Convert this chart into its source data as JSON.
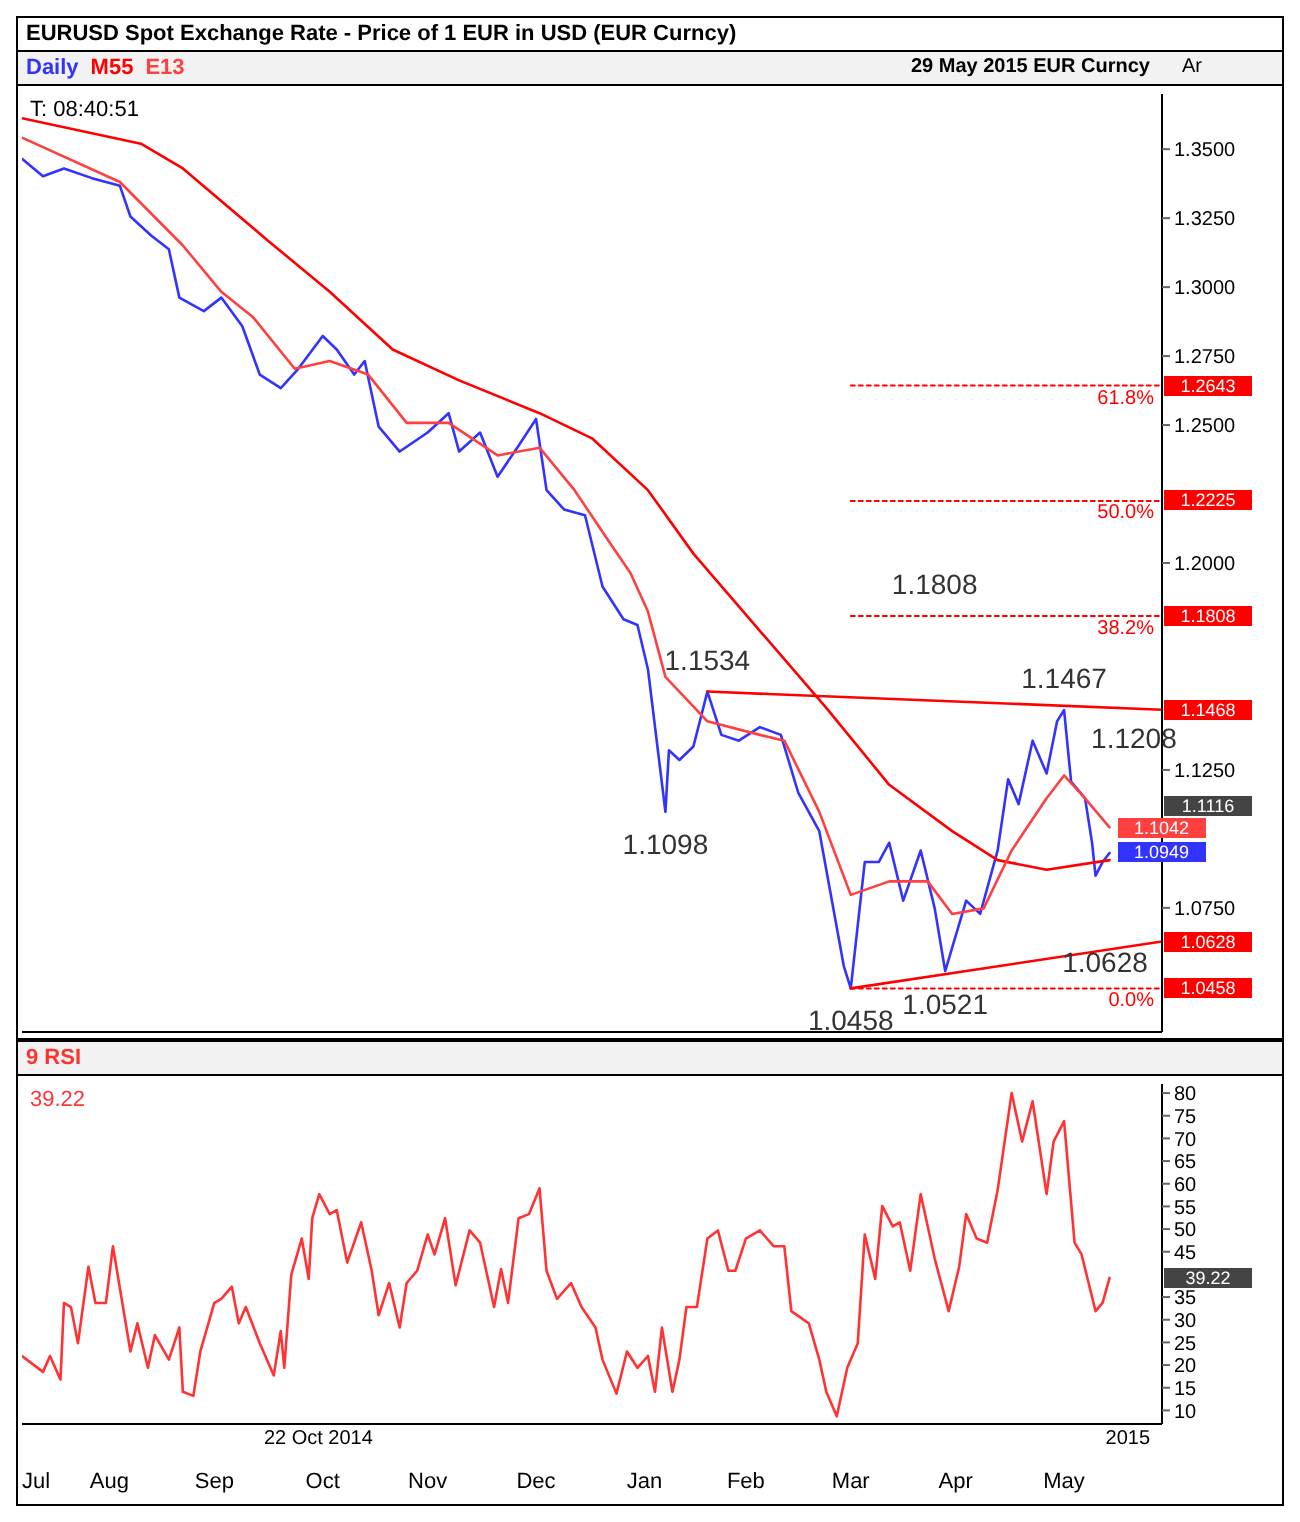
{
  "chart_data": [
    {
      "type": "line",
      "title": "EURUSD Spot Exchange Rate - Price of 1 EUR in USD (EUR Curncy)",
      "legend": "top left",
      "tick_labels": "y",
      "xlim": [
        "2014-07-22",
        "2015-06-13"
      ],
      "ylim": [
        1.03,
        1.37
      ],
      "yticks": [
        {
          "value": 1.075,
          "label": "1.0750"
        },
        {
          "value": 1.125,
          "label": "1.1250"
        },
        {
          "value": 1.2,
          "label": "1.2000"
        },
        {
          "value": 1.25,
          "label": "1.2500"
        },
        {
          "value": 1.275,
          "label": "1.2750"
        },
        {
          "value": 1.3,
          "label": "1.3000"
        },
        {
          "value": 1.325,
          "label": "1.3250"
        },
        {
          "value": 1.35,
          "label": "1.3500"
        }
      ],
      "series": [
        {
          "name": "Daily",
          "color": "#3333ff",
          "x": [
            "2014-07-22",
            "2014-07-28",
            "2014-08-03",
            "2014-08-11",
            "2014-08-19",
            "2014-08-22",
            "2014-08-28",
            "2014-09-02",
            "2014-09-05",
            "2014-09-12",
            "2014-09-17",
            "2014-09-23",
            "2014-09-28",
            "2014-10-04",
            "2014-10-09",
            "2014-10-16",
            "2014-10-20",
            "2014-10-25",
            "2014-10-28",
            "2014-11-01",
            "2014-11-07",
            "2014-11-15",
            "2014-11-21",
            "2014-11-24",
            "2014-11-30",
            "2014-12-05",
            "2014-12-11",
            "2014-12-16",
            "2014-12-19",
            "2014-12-24",
            "2014-12-30",
            "2015-01-04",
            "2015-01-10",
            "2015-01-14",
            "2015-01-17",
            "2015-01-22",
            "2015-01-23",
            "2015-01-26",
            "2015-01-30",
            "2015-02-03",
            "2015-02-07",
            "2015-02-12",
            "2015-02-18",
            "2015-02-24",
            "2015-03-01",
            "2015-03-07",
            "2015-03-10",
            "2015-03-14",
            "2015-03-16",
            "2015-03-20",
            "2015-03-24",
            "2015-03-27",
            "2015-03-31",
            "2015-04-05",
            "2015-04-09",
            "2015-04-12",
            "2015-04-18",
            "2015-04-22",
            "2015-04-27",
            "2015-04-30",
            "2015-05-03",
            "2015-05-07",
            "2015-05-11",
            "2015-05-14",
            "2015-05-16",
            "2015-05-18",
            "2015-05-22",
            "2015-05-24",
            "2015-05-25",
            "2015-05-27",
            "2015-05-29"
          ],
          "values": [
            1.3465,
            1.3402,
            1.343,
            1.3395,
            1.3367,
            1.3256,
            1.3186,
            1.3137,
            1.2962,
            1.2913,
            1.2962,
            1.2858,
            1.2683,
            1.2634,
            1.2704,
            1.2823,
            1.2774,
            1.2683,
            1.2732,
            1.2494,
            1.2404,
            1.2473,
            1.2543,
            1.2404,
            1.2473,
            1.2313,
            1.2425,
            1.2522,
            1.2264,
            1.2194,
            1.2173,
            1.1915,
            1.1796,
            1.1775,
            1.1615,
            1.1098,
            1.1321,
            1.1286,
            1.1335,
            1.1534,
            1.1377,
            1.1356,
            1.1405,
            1.1377,
            1.1167,
            1.1028,
            1.0818,
            1.0539,
            1.0458,
            1.0916,
            1.0916,
            1.0986,
            1.0776,
            1.0958,
            1.0748,
            1.0521,
            1.0776,
            1.0728,
            1.0958,
            1.1216,
            1.1126,
            1.1356,
            1.1237,
            1.1426,
            1.1467,
            1.1208,
            1.1147,
            1.0986,
            1.0867,
            1.0916,
            1.0949
          ],
          "value_labels": [
            null,
            null,
            null,
            null,
            null,
            null,
            null,
            null,
            null,
            null,
            null,
            null,
            null,
            null,
            null,
            null,
            null,
            null,
            null,
            null,
            null,
            null,
            null,
            null,
            null,
            null,
            null,
            null,
            null,
            null,
            null,
            null,
            null,
            null,
            null,
            "1.1098",
            null,
            null,
            null,
            "1.1534",
            null,
            null,
            null,
            null,
            null,
            null,
            null,
            null,
            "1.0458",
            null,
            null,
            null,
            null,
            null,
            null,
            "1.0521",
            null,
            null,
            null,
            null,
            null,
            null,
            null,
            null,
            "1.1467",
            "1.1208",
            null,
            null,
            null,
            null,
            "1.0949"
          ]
        },
        {
          "name": "M55",
          "color": "#ff0000",
          "x": [
            "2014-07-22",
            "2014-08-25",
            "2014-09-06",
            "2014-09-30",
            "2014-10-18",
            "2014-11-05",
            "2014-11-24",
            "2014-12-17",
            "2015-01-01",
            "2015-01-17",
            "2015-01-30",
            "2015-02-18",
            "2015-03-09",
            "2015-03-27",
            "2015-04-14",
            "2015-04-27",
            "2015-05-11",
            "2015-05-29"
          ],
          "values": [
            1.3612,
            1.352,
            1.343,
            1.3172,
            1.2983,
            1.2774,
            1.2662,
            1.2543,
            1.2452,
            1.2264,
            1.2034,
            1.1754,
            1.1475,
            1.1196,
            1.1028,
            1.0923,
            1.0888,
            1.0923
          ]
        },
        {
          "name": "E13",
          "color": "#ff4040",
          "x": [
            "2014-07-22",
            "2014-08-19",
            "2014-09-06",
            "2014-09-17",
            "2014-09-26",
            "2014-10-08",
            "2014-10-18",
            "2014-10-29",
            "2014-11-09",
            "2014-11-21",
            "2014-12-05",
            "2014-12-17",
            "2014-12-27",
            "2015-01-06",
            "2015-01-12",
            "2015-01-17",
            "2015-01-22",
            "2015-02-03",
            "2015-02-18",
            "2015-02-25",
            "2015-03-07",
            "2015-03-16",
            "2015-03-27",
            "2015-04-07",
            "2015-04-14",
            "2015-04-23",
            "2015-05-01",
            "2015-05-11",
            "2015-05-16",
            "2015-05-22",
            "2015-05-29"
          ],
          "values": [
            1.3542,
            1.3381,
            1.3151,
            1.2983,
            1.2892,
            1.2704,
            1.2732,
            1.2683,
            1.2508,
            1.2508,
            1.239,
            1.2418,
            1.2264,
            1.2075,
            1.1964,
            1.1824,
            1.1587,
            1.1426,
            1.1377,
            1.1356,
            1.1098,
            1.0797,
            1.0846,
            1.0846,
            1.0728,
            1.0748,
            1.0958,
            1.1147,
            1.123,
            1.1147,
            1.1042
          ],
          "value_labels": [
            null,
            null,
            null,
            null,
            null,
            null,
            null,
            null,
            null,
            null,
            null,
            null,
            null,
            null,
            null,
            null,
            null,
            null,
            null,
            null,
            null,
            null,
            null,
            null,
            null,
            null,
            null,
            null,
            null,
            null,
            "1.1042"
          ]
        },
        {
          "color": "#ff0000",
          "x": [
            "2015-02-03",
            "2015-06-13"
          ],
          "values": [
            1.1534,
            1.1468
          ],
          "value_labels": [
            null,
            "1.1468"
          ]
        },
        {
          "color": "#ff0000",
          "x": [
            "2015-03-16",
            "2015-06-13"
          ],
          "values": [
            1.0458,
            1.0628
          ],
          "value_labels": [
            null,
            "1.0628"
          ]
        },
        {
          "color": "#ff0000",
          "line_style": "dotted",
          "x": [
            "2015-03-16",
            "2015-06-13"
          ],
          "values": [
            1.2643,
            1.2643
          ],
          "value_labels": [
            null,
            "1.2643"
          ]
        },
        {
          "color": "#ff0000",
          "line_style": "dotted",
          "x": [
            "2015-03-16",
            "2015-06-13"
          ],
          "values": [
            1.2225,
            1.2225
          ],
          "value_labels": [
            null,
            "1.2225"
          ]
        },
        {
          "color": "#ff0000",
          "line_style": "dotted",
          "x": [
            "2015-03-16",
            "2015-04-09",
            "2015-06-13"
          ],
          "values": [
            1.1808,
            1.1808,
            1.1808
          ],
          "value_labels": [
            null,
            "1.1808",
            "1.1808"
          ]
        },
        {
          "color": "#ff0000",
          "line_style": "dotted",
          "x": [
            "2015-03-16",
            "2015-06-13"
          ],
          "values": [
            1.0458,
            1.0458
          ],
          "value_labels": [
            null,
            "1.0458"
          ]
        }
      ],
      "annotations": [
        "29 May 2015  EUR Curncy",
        "Ar",
        "T: 08:40:51",
        "1.1116",
        "1.0628",
        {
          "text": "61.8%",
          "x": "2015-06-13",
          "y": 1.2643
        },
        {
          "text": "50.0%",
          "x": "2015-06-13",
          "y": 1.2225
        },
        {
          "text": "38.2%",
          "x": "2015-06-13",
          "y": 1.1808
        },
        {
          "text": "0.0%",
          "x": "2015-06-13",
          "y": 1.0458
        }
      ]
    },
    {
      "type": "line",
      "legend": "top left",
      "xlim": [
        "2014-07-22",
        "2015-06-13"
      ],
      "ylim": [
        7,
        82
      ],
      "xticks": [
        {
          "value": "2014-07-26",
          "label": "Jul"
        },
        {
          "value": "2014-08-16",
          "label": "Aug"
        },
        {
          "value": "2014-09-15",
          "label": "Sep"
        },
        {
          "value": "2014-10-16",
          "label": "Oct"
        },
        {
          "value": "2014-11-15",
          "label": "Nov"
        },
        {
          "value": "2014-12-16",
          "label": "Dec"
        },
        {
          "value": "2015-01-16",
          "label": "Jan"
        },
        {
          "value": "2015-02-14",
          "label": "Feb"
        },
        {
          "value": "2015-03-16",
          "label": "Mar"
        },
        {
          "value": "2015-04-15",
          "label": "Apr"
        },
        {
          "value": "2015-05-16",
          "label": "May"
        }
      ],
      "yticks": [
        10,
        15,
        20,
        25,
        30,
        35,
        45,
        50,
        55,
        60,
        65,
        70,
        75,
        80
      ],
      "series": [
        {
          "name": "9 RSI",
          "color": "#ff3333",
          "x": [
            "2014-07-22",
            "2014-07-28",
            "2014-07-30",
            "2014-08-02",
            "2014-08-03",
            "2014-08-05",
            "2014-08-07",
            "2014-08-10",
            "2014-08-12",
            "2014-08-15",
            "2014-08-17",
            "2014-08-22",
            "2014-08-24",
            "2014-08-27",
            "2014-08-29",
            "2014-09-02",
            "2014-09-05",
            "2014-09-06",
            "2014-09-09",
            "2014-09-11",
            "2014-09-15",
            "2014-09-17",
            "2014-09-20",
            "2014-09-22",
            "2014-09-24",
            "2014-09-28",
            "2014-10-02",
            "2014-10-04",
            "2014-10-05",
            "2014-10-07",
            "2014-10-10",
            "2014-10-12",
            "2014-10-13",
            "2014-10-15",
            "2014-10-18",
            "2014-10-20",
            "2014-10-23",
            "2014-10-27",
            "2014-10-30",
            "2014-11-01",
            "2014-11-04",
            "2014-11-07",
            "2014-11-09",
            "2014-11-12",
            "2014-11-15",
            "2014-11-17",
            "2014-11-20",
            "2014-11-23",
            "2014-11-27",
            "2014-11-30",
            "2014-12-04",
            "2014-12-06",
            "2014-12-08",
            "2014-12-11",
            "2014-12-14",
            "2014-12-17",
            "2014-12-19",
            "2014-12-22",
            "2014-12-26",
            "2014-12-29",
            "2015-01-02",
            "2015-01-04",
            "2015-01-08",
            "2015-01-11",
            "2015-01-14",
            "2015-01-17",
            "2015-01-19",
            "2015-01-21",
            "2015-01-24",
            "2015-01-26",
            "2015-01-28",
            "2015-01-31",
            "2015-02-03",
            "2015-02-06",
            "2015-02-09",
            "2015-02-11",
            "2015-02-14",
            "2015-02-18",
            "2015-02-22",
            "2015-02-25",
            "2015-02-27",
            "2015-03-04",
            "2015-03-07",
            "2015-03-09",
            "2015-03-12",
            "2015-03-15",
            "2015-03-18",
            "2015-03-20",
            "2015-03-23",
            "2015-03-25",
            "2015-03-28",
            "2015-03-30",
            "2015-04-02",
            "2015-04-05",
            "2015-04-09",
            "2015-04-13",
            "2015-04-16",
            "2015-04-18",
            "2015-04-21",
            "2015-04-24",
            "2015-04-27",
            "2015-05-01",
            "2015-05-04",
            "2015-05-07",
            "2015-05-11",
            "2015-05-13",
            "2015-05-16",
            "2015-05-19",
            "2015-05-21",
            "2015-05-25",
            "2015-05-27",
            "2015-05-29"
          ],
          "values": [
            22,
            18.5,
            22,
            16.8,
            33.7,
            32.8,
            24.8,
            41.7,
            33.7,
            33.7,
            46.2,
            23,
            29.2,
            19.4,
            26.6,
            21.2,
            28.3,
            14.1,
            13.2,
            23,
            33.7,
            34.6,
            37.3,
            29.2,
            32.8,
            24.8,
            17.7,
            27.5,
            19.4,
            39.9,
            47.9,
            39,
            52.4,
            57.7,
            53.3,
            54.2,
            42.6,
            51.5,
            40.8,
            31,
            38.1,
            28.3,
            38.1,
            40.8,
            48.8,
            44.4,
            52.4,
            37.6,
            49.7,
            47,
            32.8,
            41.2,
            33.7,
            52.4,
            53.3,
            59,
            40.8,
            34.6,
            38.1,
            32.8,
            28.3,
            21.2,
            13.7,
            23,
            19.4,
            22,
            14.1,
            28.3,
            14.1,
            21.2,
            32.8,
            32.8,
            47.9,
            49.7,
            40.8,
            40.8,
            47.9,
            49.7,
            46.2,
            46.2,
            31.9,
            29.2,
            21.2,
            14.1,
            8.7,
            19.4,
            24.8,
            48.8,
            39,
            55.1,
            50.6,
            51.5,
            40.8,
            57.7,
            43.5,
            31.9,
            41.7,
            53.3,
            47.9,
            47,
            58.6,
            80,
            69.3,
            78.2,
            57.7,
            69.3,
            73.8,
            47,
            44.4,
            31.9,
            33.7,
            39.22
          ]
        }
      ],
      "annotations": [
        "39.22",
        "39.22",
        "22 Oct 2014",
        "2015"
      ]
    }
  ]
}
